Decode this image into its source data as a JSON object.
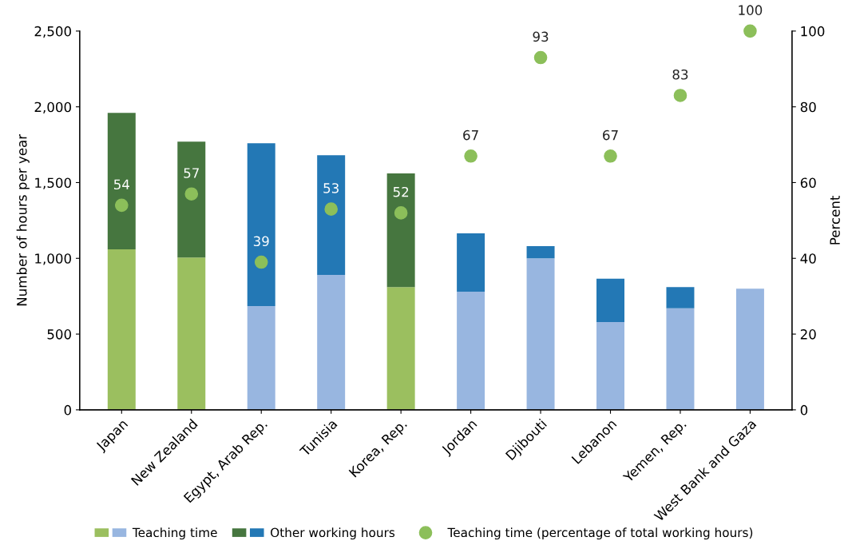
{
  "chart_data": {
    "type": "bar",
    "stacked": true,
    "categories": [
      "Japan",
      "New Zealand",
      "Egypt, Arab Rep.",
      "Tunisia",
      "Korea, Rep.",
      "Jordan",
      "Djibouti",
      "Lebanon",
      "Yemen, Rep.",
      "West Bank and Gaza"
    ],
    "series": [
      {
        "name": "Teaching time",
        "colors": [
          "#9bbf5f",
          "#9bbf5f",
          "#98b6e0",
          "#98b6e0",
          "#9bbf5f",
          "#98b6e0",
          "#98b6e0",
          "#98b6e0",
          "#98b6e0",
          "#98b6e0"
        ],
        "values": [
          1060,
          1005,
          685,
          890,
          810,
          780,
          1000,
          580,
          670,
          800
        ]
      },
      {
        "name": "Other working hours",
        "colors": [
          "#46763f",
          "#46763f",
          "#2378b5",
          "#2378b5",
          "#46763f",
          "#2378b5",
          "#2378b5",
          "#2378b5",
          "#2378b5",
          "#2378b5"
        ],
        "values": [
          900,
          765,
          1075,
          790,
          750,
          385,
          80,
          285,
          140,
          null
        ]
      },
      {
        "name": "Teaching time (percentage of total working hours)",
        "type": "scatter",
        "axis": "y2",
        "color": "#8cbf5a",
        "marker": "circle",
        "values": [
          54,
          57,
          39,
          53,
          52,
          67,
          93,
          67,
          83,
          100
        ],
        "value_labels": [
          "54",
          "57",
          "39",
          "53",
          "52",
          "67",
          "93",
          "67",
          "83",
          "100"
        ]
      }
    ],
    "ylabel": "Number of hours per year",
    "y2label": "Percent",
    "ylim": [
      0,
      2500
    ],
    "yticks": [
      0,
      500,
      {
        "value": 1000,
        "label": "1,000"
      },
      {
        "value": 1500,
        "label": "1,500"
      },
      {
        "value": 2000,
        "label": "2,000"
      },
      {
        "value": 2500,
        "label": "2,500"
      }
    ],
    "y2lim": [
      0,
      100
    ],
    "y2ticks": [
      0,
      20,
      40,
      60,
      80,
      100
    ],
    "grid": false,
    "legend": "bottom"
  }
}
